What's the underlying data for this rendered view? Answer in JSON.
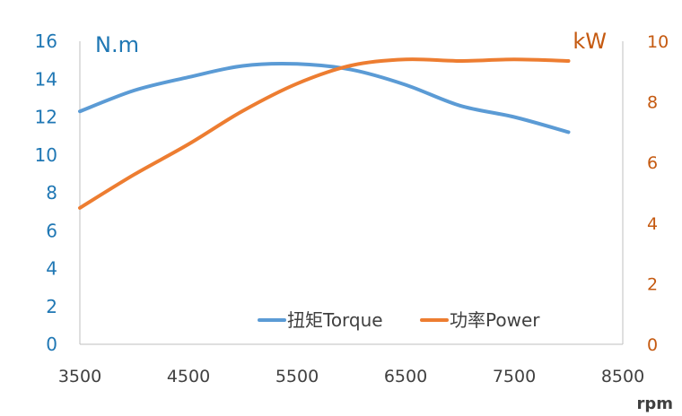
{
  "chart_data": {
    "type": "line",
    "xlabel": "rpm",
    "ylabel_left": "N.m",
    "ylabel_right": "kW",
    "xlim": [
      3500,
      8500
    ],
    "xticks": [
      "3500",
      "4500",
      "5500",
      "6500",
      "7500",
      "8500"
    ],
    "ylim_left": [
      0,
      16
    ],
    "yticks_left": [
      "0",
      "2",
      "4",
      "6",
      "8",
      "10",
      "12",
      "14",
      "16"
    ],
    "ylim_right": [
      0,
      10
    ],
    "yticks_right": [
      "0",
      "2",
      "4",
      "6",
      "8",
      "10"
    ],
    "grid": false,
    "legend_position": "bottom-right",
    "series": [
      {
        "name": "扭矩Torque",
        "axis": "left",
        "color": "#5b9bd5",
        "x": [
          3500,
          4000,
          4500,
          5000,
          5500,
          6000,
          6500,
          7000,
          7500,
          8000
        ],
        "y": [
          12.3,
          13.4,
          14.1,
          14.7,
          14.8,
          14.5,
          13.7,
          12.6,
          12.0,
          11.2
        ]
      },
      {
        "name": "功率Power",
        "axis": "right",
        "color": "#ed7d31",
        "x": [
          3500,
          4000,
          4500,
          5000,
          5500,
          6000,
          6500,
          7000,
          7500,
          8000
        ],
        "y": [
          4.5,
          5.6,
          6.6,
          7.7,
          8.6,
          9.2,
          9.4,
          9.35,
          9.4,
          9.35
        ]
      }
    ],
    "colors": {
      "left_axis": "#1f77b4",
      "right_axis": "#c55a11",
      "x_axis_text": "#404040",
      "axis_line": "#bfbfbf"
    }
  }
}
